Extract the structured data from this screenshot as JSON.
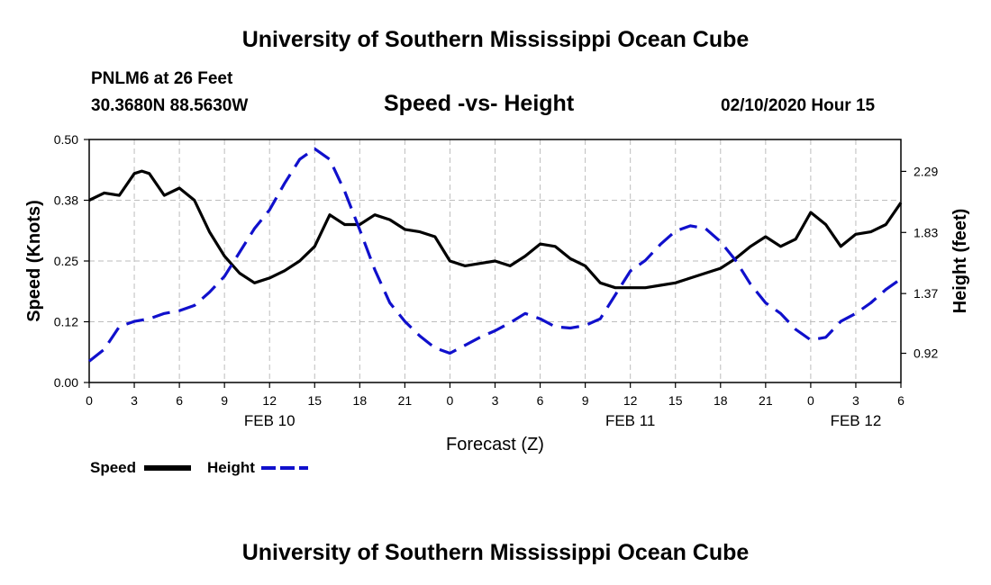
{
  "header": {
    "title_top": "University of Southern Mississippi Ocean Cube",
    "station": "PNLM6 at 26 Feet",
    "coords": "30.3680N 88.5630W",
    "subtitle": "Speed -vs- Height",
    "timestamp": "02/10/2020 Hour 15",
    "title_bottom": "University of Southern Mississippi Ocean Cube"
  },
  "legend": {
    "speed_label": "Speed",
    "height_label": "Height"
  },
  "chart_data": {
    "type": "line",
    "title": "Speed -vs- Height",
    "xlabel": "Forecast (Z)",
    "ylabel": "Speed (Knots)",
    "y2label": "Height (feet)",
    "xlim": [
      0,
      54
    ],
    "ylim": [
      0,
      0.5
    ],
    "y2lim": [
      0.7,
      2.53
    ],
    "grid": true,
    "x_ticks": [
      0,
      3,
      6,
      9,
      12,
      15,
      18,
      21,
      24,
      27,
      30,
      33,
      36,
      39,
      42,
      45,
      48,
      51,
      54
    ],
    "x_tick_labels": [
      "0",
      "3",
      "6",
      "9",
      "12",
      "15",
      "18",
      "21",
      "0",
      "3",
      "6",
      "9",
      "12",
      "15",
      "18",
      "21",
      "0",
      "3",
      "6"
    ],
    "y_ticks": [
      0,
      0.125,
      0.25,
      0.375,
      0.5
    ],
    "y_tick_labels": [
      "0.00",
      "0.12",
      "0.25",
      "0.38",
      "0.50"
    ],
    "y2_ticks": [
      0.92,
      1.37,
      1.83,
      2.29
    ],
    "y2_tick_labels": [
      "0.92",
      "1.37",
      "1.83",
      "2.29"
    ],
    "day_labels": [
      {
        "x": 12,
        "label": "FEB 10"
      },
      {
        "x": 36,
        "label": "FEB 11"
      },
      {
        "x": 51,
        "label": "FEB 12"
      }
    ],
    "series": [
      {
        "name": "Speed",
        "axis": "left",
        "color": "#000000",
        "dash": "solid",
        "x": [
          0,
          1,
          2,
          3,
          3.5,
          4,
          5,
          6,
          7,
          8,
          9,
          10,
          11,
          12,
          13,
          14,
          15,
          16,
          17,
          18,
          19,
          20,
          21,
          22,
          23,
          24,
          25,
          26,
          27,
          28,
          29,
          30,
          31,
          32,
          33,
          34,
          35,
          36,
          37,
          38,
          39,
          40,
          41,
          42,
          43,
          44,
          45,
          46,
          47,
          48,
          49,
          50,
          51,
          52,
          53,
          54
        ],
        "y": [
          0.375,
          0.39,
          0.385,
          0.43,
          0.435,
          0.43,
          0.385,
          0.4,
          0.375,
          0.31,
          0.26,
          0.225,
          0.205,
          0.215,
          0.23,
          0.25,
          0.28,
          0.345,
          0.325,
          0.325,
          0.345,
          0.335,
          0.315,
          0.31,
          0.3,
          0.25,
          0.24,
          0.245,
          0.25,
          0.24,
          0.26,
          0.285,
          0.28,
          0.255,
          0.24,
          0.205,
          0.195,
          0.195,
          0.195,
          0.2,
          0.205,
          0.215,
          0.225,
          0.235,
          0.255,
          0.28,
          0.3,
          0.28,
          0.295,
          0.35,
          0.325,
          0.28,
          0.305,
          0.31,
          0.325,
          0.37
        ]
      },
      {
        "name": "Height",
        "axis": "right",
        "color": "#1010cc",
        "dash": "dashed",
        "x": [
          0,
          1,
          2,
          3,
          4,
          5,
          6,
          7,
          8,
          9,
          10,
          11,
          12,
          13,
          14,
          15,
          16,
          17,
          18,
          19,
          20,
          21,
          22,
          23,
          24,
          25,
          26,
          27,
          28,
          29,
          30,
          31,
          32,
          33,
          34,
          35,
          36,
          37,
          38,
          39,
          40,
          41,
          42,
          43,
          44,
          45,
          46,
          47,
          48,
          49,
          50,
          51,
          52,
          53,
          54
        ],
        "y": [
          0.86,
          0.95,
          1.12,
          1.16,
          1.18,
          1.22,
          1.24,
          1.28,
          1.38,
          1.5,
          1.68,
          1.86,
          2.0,
          2.2,
          2.38,
          2.46,
          2.38,
          2.14,
          1.85,
          1.55,
          1.3,
          1.16,
          1.05,
          0.96,
          0.92,
          0.98,
          1.04,
          1.09,
          1.15,
          1.22,
          1.18,
          1.12,
          1.11,
          1.13,
          1.18,
          1.36,
          1.54,
          1.62,
          1.74,
          1.84,
          1.88,
          1.86,
          1.76,
          1.62,
          1.44,
          1.3,
          1.22,
          1.1,
          1.02,
          1.04,
          1.16,
          1.22,
          1.3,
          1.4,
          1.48
        ]
      }
    ]
  }
}
